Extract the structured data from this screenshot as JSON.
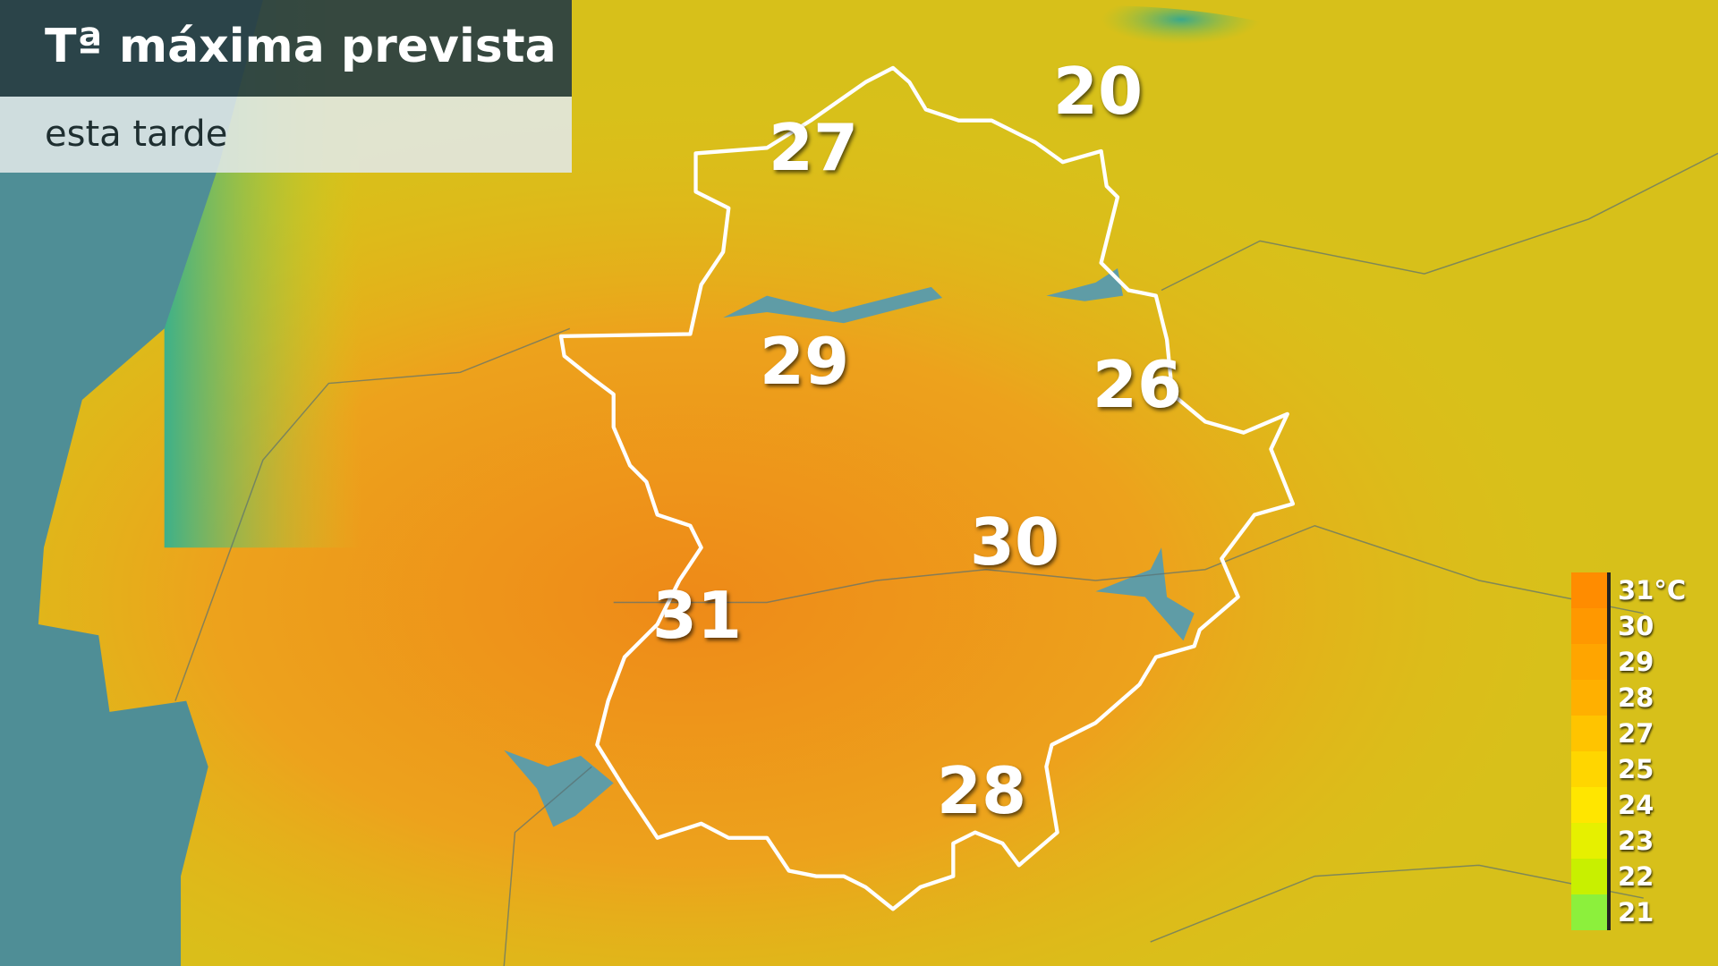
{
  "header": {
    "title": "Tª máxima prevista",
    "subtitle": "esta tarde"
  },
  "temperatures": [
    {
      "value": "27"
    },
    {
      "value": "20"
    },
    {
      "value": "29"
    },
    {
      "value": "26"
    },
    {
      "value": "30"
    },
    {
      "value": "31"
    },
    {
      "value": "28"
    }
  ],
  "legend": {
    "labels": [
      "31°C",
      "30",
      "29",
      "28",
      "27",
      "25",
      "24",
      "23",
      "22",
      "21"
    ],
    "colors": [
      "#ff8c00",
      "#ff9800",
      "#ffa500",
      "#ffb000",
      "#ffc400",
      "#ffd600",
      "#ffe600",
      "#e6f000",
      "#c8f000",
      "#8cf03c"
    ]
  },
  "colors": {
    "sea": "#4f8e96",
    "land_warm": "#ec9a1c",
    "land_mild": "#e2c414",
    "boundary": "#ffffff"
  }
}
